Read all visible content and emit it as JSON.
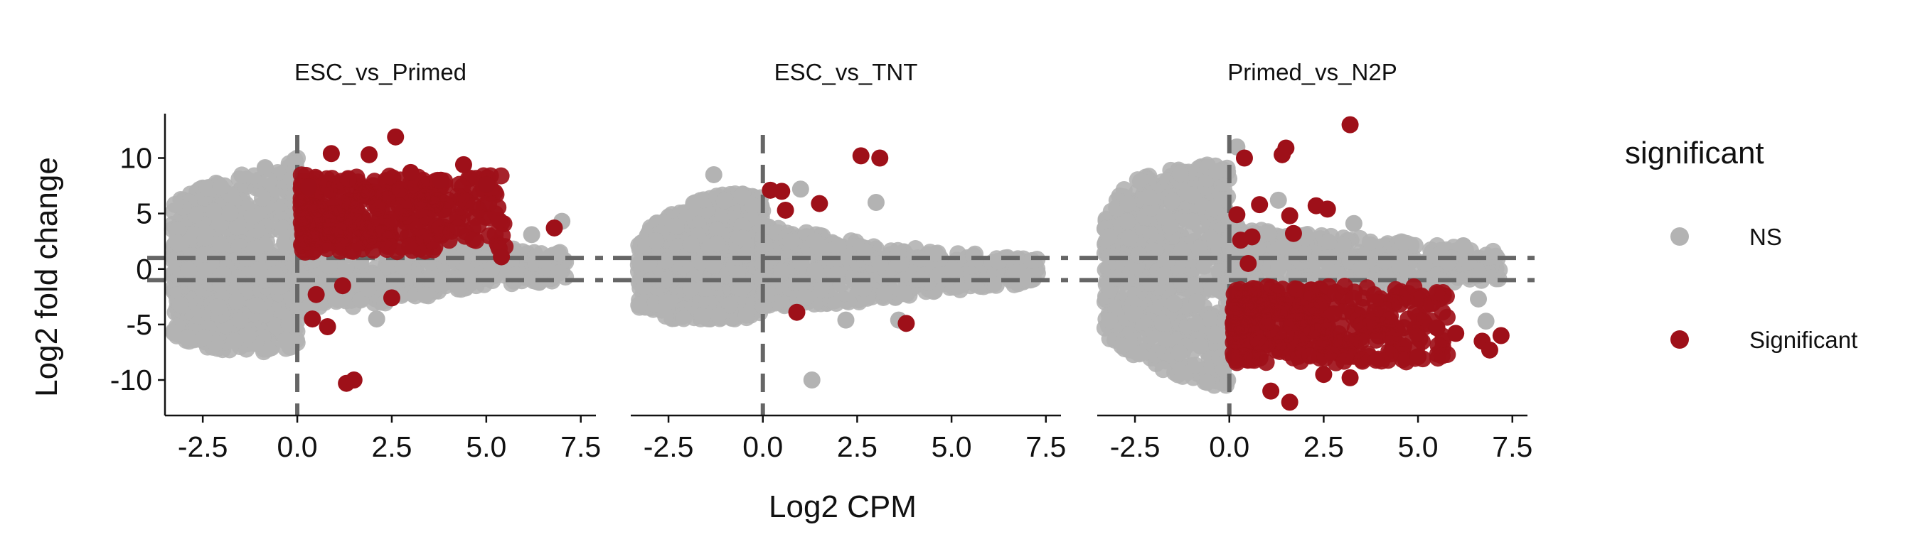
{
  "chart_data": {
    "type": "scatter",
    "xlabel": "Log2 CPM",
    "ylabel": "Log2 fold change",
    "xlim": [
      -3.5,
      7.9
    ],
    "ylim": [
      -13.2,
      14.0
    ],
    "x_ticks": [
      -2.5,
      0.0,
      2.5,
      5.0,
      7.5
    ],
    "x_tick_labels": [
      "-2.5",
      "0.0",
      "2.5",
      "5.0",
      "7.5"
    ],
    "y_ticks": [
      10,
      5,
      0,
      -5,
      -10
    ],
    "y_tick_labels": [
      "10",
      "5",
      "0",
      "-5",
      "-10"
    ],
    "reference_lines": {
      "vertical_x": 0.0,
      "horizontal_y": [
        1,
        -1
      ]
    },
    "legend": {
      "title": "significant",
      "position": "right",
      "entries": [
        {
          "label": "NS",
          "color": "#b3b3b3"
        },
        {
          "label": "Significant",
          "color": "#9e1019"
        }
      ]
    },
    "facets": [
      {
        "title": "ESC_vs_Primed",
        "ns_cloud": {
          "x_range": [
            -3.3,
            0.0
          ],
          "y_bounds": [
            [
              -3.3,
              -6,
              6
            ],
            [
              -2.5,
              -7,
              7.5
            ],
            [
              -1.5,
              -7.5,
              8.5
            ],
            [
              -0.5,
              -7.5,
              9.5
            ],
            [
              0.0,
              -7,
              10
            ]
          ]
        },
        "ns_tail": {
          "x_range": [
            0.0,
            7.2
          ],
          "y_bounds": [
            [
              0.0,
              -4,
              5
            ],
            [
              2.5,
              -3,
              3
            ],
            [
              5.0,
              -1.5,
              2
            ],
            [
              7.2,
              -1,
              1.5
            ]
          ]
        },
        "significant_cluster": {
          "x_range": [
            0.1,
            5.5
          ],
          "y_range": [
            1.5,
            8.5
          ]
        },
        "significant_points": [
          {
            "x": 1.3,
            "y": -10.3
          },
          {
            "x": 1.5,
            "y": -10.0
          },
          {
            "x": 0.9,
            "y": 10.4
          },
          {
            "x": 2.6,
            "y": 11.9
          },
          {
            "x": 1.9,
            "y": 10.3
          },
          {
            "x": 4.4,
            "y": 9.4
          },
          {
            "x": 3.0,
            "y": 8.7
          },
          {
            "x": 5.0,
            "y": 7.6
          },
          {
            "x": 3.8,
            "y": 8.0
          },
          {
            "x": 6.8,
            "y": 3.7
          },
          {
            "x": 5.4,
            "y": 1.1
          },
          {
            "x": 0.4,
            "y": -4.5
          },
          {
            "x": 0.8,
            "y": -5.2
          },
          {
            "x": 2.5,
            "y": -2.6
          },
          {
            "x": 1.2,
            "y": -1.5
          },
          {
            "x": 0.5,
            "y": -2.3
          },
          {
            "x": 0.3,
            "y": 7.4
          }
        ],
        "ns_points": [
          {
            "x": 6.2,
            "y": 3.1
          },
          {
            "x": 7.0,
            "y": 4.3
          },
          {
            "x": 6.5,
            "y": 0.8
          },
          {
            "x": 6.4,
            "y": -1.2
          },
          {
            "x": 2.1,
            "y": -4.5
          },
          {
            "x": -0.3,
            "y": -6.5
          }
        ]
      },
      {
        "title": "ESC_vs_TNT",
        "ns_cloud": {
          "x_range": [
            -3.3,
            0.0
          ],
          "y_bounds": [
            [
              -3.3,
              -3.5,
              3
            ],
            [
              -2.5,
              -4.5,
              5
            ],
            [
              -1.5,
              -4.5,
              6.5
            ],
            [
              -0.5,
              -4.5,
              7
            ],
            [
              0.0,
              -4,
              6.5
            ]
          ]
        },
        "ns_tail": {
          "x_range": [
            0.0,
            7.3
          ],
          "y_bounds": [
            [
              0.0,
              -3.5,
              4
            ],
            [
              2.5,
              -3,
              2.5
            ],
            [
              5.0,
              -2,
              1.5
            ],
            [
              7.3,
              -1.2,
              1.2
            ]
          ]
        },
        "significant_cluster": null,
        "significant_points": [
          {
            "x": 2.6,
            "y": 10.2
          },
          {
            "x": 3.1,
            "y": 10.0
          },
          {
            "x": 0.2,
            "y": 7.1
          },
          {
            "x": 0.5,
            "y": 7.0
          },
          {
            "x": 1.5,
            "y": 5.9
          },
          {
            "x": 0.6,
            "y": 5.3
          },
          {
            "x": 0.9,
            "y": -3.9
          },
          {
            "x": 3.8,
            "y": -4.9
          }
        ],
        "ns_points": [
          {
            "x": -1.3,
            "y": 8.5
          },
          {
            "x": 1.3,
            "y": -10.0
          },
          {
            "x": 3.0,
            "y": 6.0
          },
          {
            "x": 2.2,
            "y": -4.6
          },
          {
            "x": 3.6,
            "y": -4.6
          },
          {
            "x": 1.0,
            "y": 7.2
          }
        ]
      },
      {
        "title": "Primed_vs_N2P",
        "ns_cloud": {
          "x_range": [
            -3.3,
            0.0
          ],
          "y_bounds": [
            [
              -3.3,
              -6,
              6
            ],
            [
              -2.5,
              -8,
              8
            ],
            [
              -1.5,
              -9.5,
              9
            ],
            [
              -0.5,
              -10.5,
              9.5
            ],
            [
              0.0,
              -10.5,
              9.5
            ]
          ]
        },
        "ns_tail": {
          "x_range": [
            0.0,
            7.2
          ],
          "y_bounds": [
            [
              0.0,
              -4,
              4
            ],
            [
              2.5,
              -2,
              3
            ],
            [
              5.0,
              -1.5,
              2.5
            ],
            [
              7.2,
              -1,
              1.5
            ]
          ]
        },
        "significant_cluster": {
          "x_range": [
            0.1,
            5.8
          ],
          "y_range": [
            -8.5,
            -1.5
          ]
        },
        "significant_points": [
          {
            "x": 3.2,
            "y": 13.0
          },
          {
            "x": 0.4,
            "y": 10.0
          },
          {
            "x": 1.5,
            "y": 10.9
          },
          {
            "x": 1.4,
            "y": 10.3
          },
          {
            "x": 0.8,
            "y": 5.8
          },
          {
            "x": 2.3,
            "y": 5.7
          },
          {
            "x": 2.6,
            "y": 5.4
          },
          {
            "x": 1.6,
            "y": 4.8
          },
          {
            "x": 0.2,
            "y": 4.9
          },
          {
            "x": 0.6,
            "y": 2.9
          },
          {
            "x": 1.7,
            "y": 3.2
          },
          {
            "x": 0.3,
            "y": 2.6
          },
          {
            "x": 0.5,
            "y": 0.5
          },
          {
            "x": 1.6,
            "y": -12.0
          },
          {
            "x": 1.1,
            "y": -11.0
          },
          {
            "x": 7.2,
            "y": -6.0
          },
          {
            "x": 6.7,
            "y": -6.5
          },
          {
            "x": 6.9,
            "y": -7.3
          },
          {
            "x": 5.5,
            "y": -5.3
          },
          {
            "x": 5.0,
            "y": -7.9
          },
          {
            "x": 6.0,
            "y": -5.8
          },
          {
            "x": 2.5,
            "y": -9.5
          },
          {
            "x": 3.2,
            "y": -9.8
          }
        ],
        "ns_points": [
          {
            "x": 0.2,
            "y": 11.0
          },
          {
            "x": 1.3,
            "y": 6.2
          },
          {
            "x": 3.3,
            "y": 4.1
          },
          {
            "x": 6.2,
            "y": 2.1
          },
          {
            "x": 5.5,
            "y": 1.2
          },
          {
            "x": 6.8,
            "y": -4.7
          },
          {
            "x": 6.6,
            "y": -2.7
          },
          {
            "x": 4.5,
            "y": 0.6
          }
        ]
      }
    ]
  }
}
